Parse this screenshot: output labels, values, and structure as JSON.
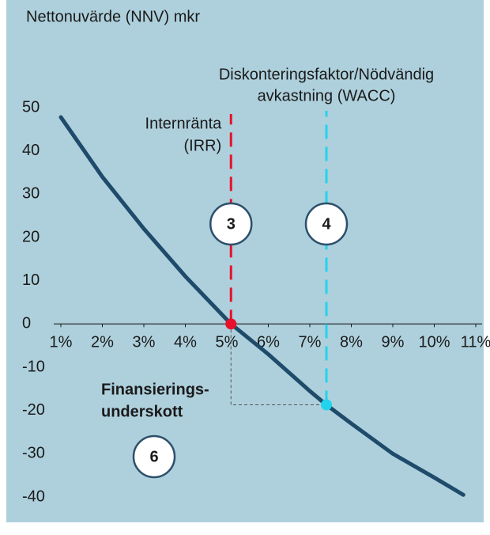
{
  "chart_data": {
    "type": "line",
    "subtitle": "Nettonuvärde (NNV) mkr",
    "series": [
      {
        "name": "NNV",
        "color": "#1f4b6b",
        "x": [
          1,
          2,
          3,
          4,
          5,
          5.1,
          6,
          7,
          7.4,
          8,
          9,
          10,
          10.7
        ],
        "values": [
          47.8,
          34,
          22,
          11,
          1,
          0,
          -7,
          -15.5,
          -18.7,
          -23,
          -30,
          -35.5,
          -39.5
        ]
      }
    ],
    "xlim": [
      1,
      11
    ],
    "xticks": [
      {
        "value": 1,
        "label": "1%"
      },
      {
        "value": 2,
        "label": "2%"
      },
      {
        "value": 3,
        "label": "3%"
      },
      {
        "value": 4,
        "label": "4%"
      },
      {
        "value": 5,
        "label": "5%"
      },
      {
        "value": 6,
        "label": "6%"
      },
      {
        "value": 7,
        "label": "7%"
      },
      {
        "value": 8,
        "label": "8%"
      },
      {
        "value": 9,
        "label": "9%"
      },
      {
        "value": 10,
        "label": "10%"
      },
      {
        "value": 11,
        "label": "11%"
      }
    ],
    "ylim": [
      -40,
      50
    ],
    "yticks": [
      50,
      40,
      30,
      20,
      10,
      0,
      -10,
      -20,
      -30,
      -40
    ],
    "irr": {
      "label": [
        "Internränta",
        "(IRR)"
      ],
      "x": 5.1,
      "y": 0,
      "color": "#e8102a"
    },
    "wacc": {
      "label": [
        "Diskonteringsfaktor/Nödvändig",
        "avkastning (WACC)"
      ],
      "x": 7.4,
      "y": -18.7,
      "color": "#22d3ee"
    },
    "shortfall_label": [
      "Finansierings-",
      "underskott"
    ],
    "badges": [
      "3",
      "4",
      "6"
    ]
  }
}
